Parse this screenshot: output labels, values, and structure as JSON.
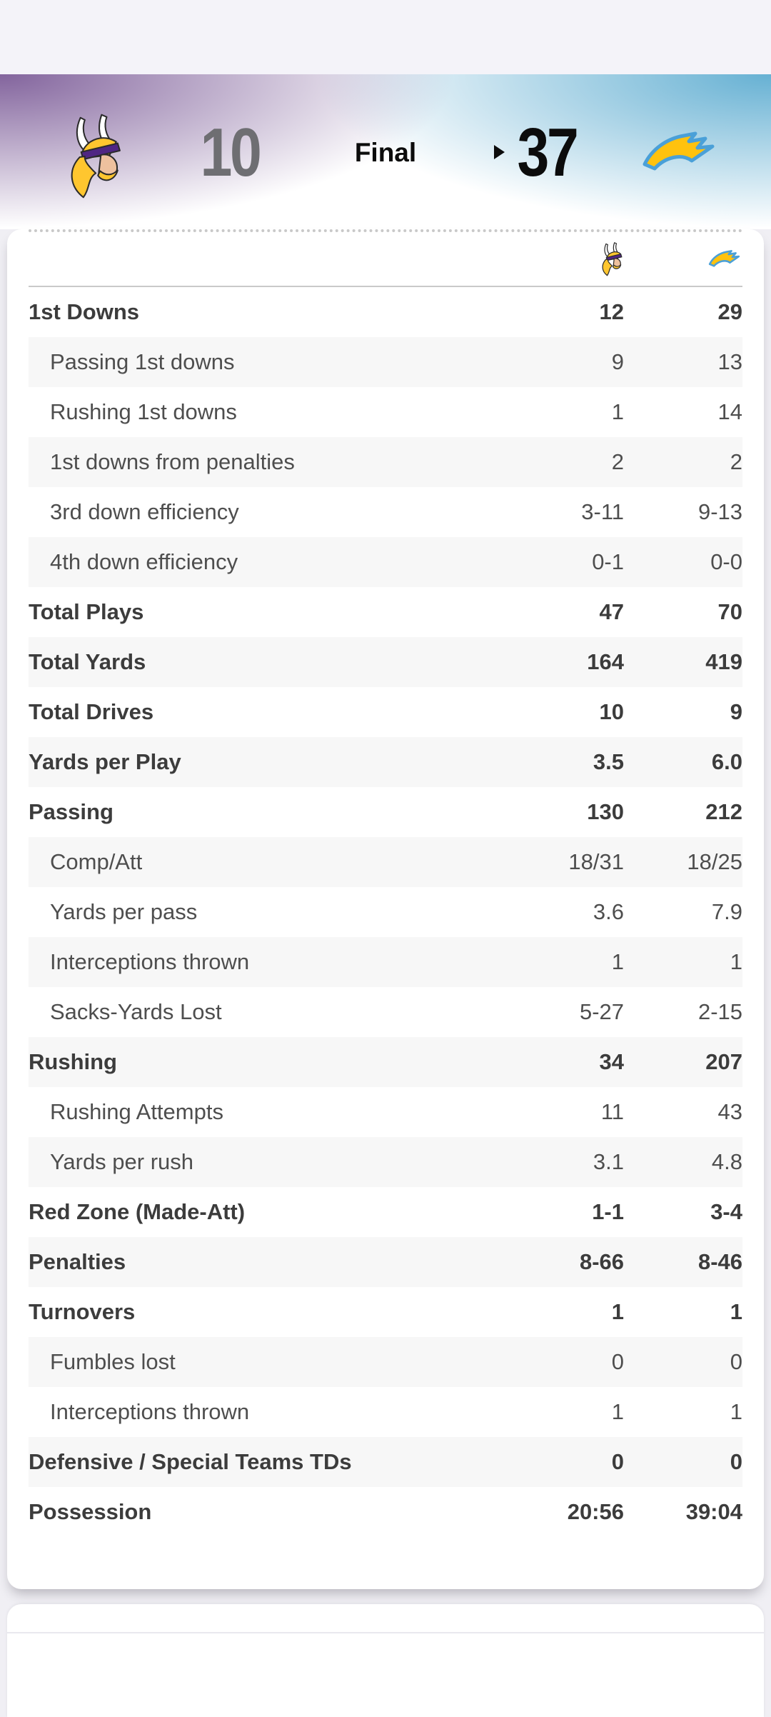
{
  "scoreboard": {
    "game_status": "Final",
    "away_team": {
      "name": "Minnesota Vikings",
      "score": "10",
      "is_winner": false,
      "primary_color": "#4F2683",
      "secondary_color": "#FFC62F"
    },
    "home_team": {
      "name": "Los Angeles Chargers",
      "score": "37",
      "is_winner": true,
      "primary_color": "#0080C6",
      "secondary_color": "#FFC20E"
    },
    "winner_indicator_side": "home"
  },
  "icons": {
    "away_logo": "vikings-head-logo",
    "home_logo": "chargers-bolt-logo",
    "winner_arrow": "right-pointing-triangle"
  },
  "team_stats": {
    "column_headers": [
      "MIN",
      "LAC"
    ],
    "rows": [
      {
        "label": "1st Downs",
        "away": "12",
        "home": "29",
        "emphasis": "bold"
      },
      {
        "label": "Passing 1st downs",
        "away": "9",
        "home": "13",
        "emphasis": "sub"
      },
      {
        "label": "Rushing 1st downs",
        "away": "1",
        "home": "14",
        "emphasis": "sub"
      },
      {
        "label": "1st downs from penalties",
        "away": "2",
        "home": "2",
        "emphasis": "sub"
      },
      {
        "label": "3rd down efficiency",
        "away": "3-11",
        "home": "9-13",
        "emphasis": "sub"
      },
      {
        "label": "4th down efficiency",
        "away": "0-1",
        "home": "0-0",
        "emphasis": "sub"
      },
      {
        "label": "Total Plays",
        "away": "47",
        "home": "70",
        "emphasis": "bold"
      },
      {
        "label": "Total Yards",
        "away": "164",
        "home": "419",
        "emphasis": "bold"
      },
      {
        "label": "Total Drives",
        "away": "10",
        "home": "9",
        "emphasis": "bold"
      },
      {
        "label": "Yards per Play",
        "away": "3.5",
        "home": "6.0",
        "emphasis": "bold"
      },
      {
        "label": "Passing",
        "away": "130",
        "home": "212",
        "emphasis": "bold"
      },
      {
        "label": "Comp/Att",
        "away": "18/31",
        "home": "18/25",
        "emphasis": "sub"
      },
      {
        "label": "Yards per pass",
        "away": "3.6",
        "home": "7.9",
        "emphasis": "sub"
      },
      {
        "label": "Interceptions thrown",
        "away": "1",
        "home": "1",
        "emphasis": "sub"
      },
      {
        "label": "Sacks-Yards Lost",
        "away": "5-27",
        "home": "2-15",
        "emphasis": "sub"
      },
      {
        "label": "Rushing",
        "away": "34",
        "home": "207",
        "emphasis": "bold"
      },
      {
        "label": "Rushing Attempts",
        "away": "11",
        "home": "43",
        "emphasis": "sub"
      },
      {
        "label": "Yards per rush",
        "away": "3.1",
        "home": "4.8",
        "emphasis": "sub"
      },
      {
        "label": "Red Zone (Made-Att)",
        "away": "1-1",
        "home": "3-4",
        "emphasis": "bold"
      },
      {
        "label": "Penalties",
        "away": "8-66",
        "home": "8-46",
        "emphasis": "bold"
      },
      {
        "label": "Turnovers",
        "away": "1",
        "home": "1",
        "emphasis": "bold"
      },
      {
        "label": "Fumbles lost",
        "away": "0",
        "home": "0",
        "emphasis": "sub"
      },
      {
        "label": "Interceptions thrown",
        "away": "1",
        "home": "1",
        "emphasis": "sub"
      },
      {
        "label": "Defensive / Special Teams TDs",
        "away": "0",
        "home": "0",
        "emphasis": "bold"
      },
      {
        "label": "Possession",
        "away": "20:56",
        "home": "39:04",
        "emphasis": "bold"
      }
    ]
  },
  "colors": {
    "status_bar_bg": "#f4f3f9",
    "header_purple": "#6d498c",
    "header_blue": "#409dc8",
    "page_bg": "#f0eff4",
    "card_bg": "#ffffff",
    "row_alt_bg": "#f7f7f7",
    "bold_text": "#3c3c3c",
    "sub_text": "#4e4e4e",
    "losing_score_text": "#6e6e72",
    "winning_score_text": "#0c0c0c",
    "divider": "#c9c9c9",
    "dotted_border": "#c9c9c9"
  }
}
